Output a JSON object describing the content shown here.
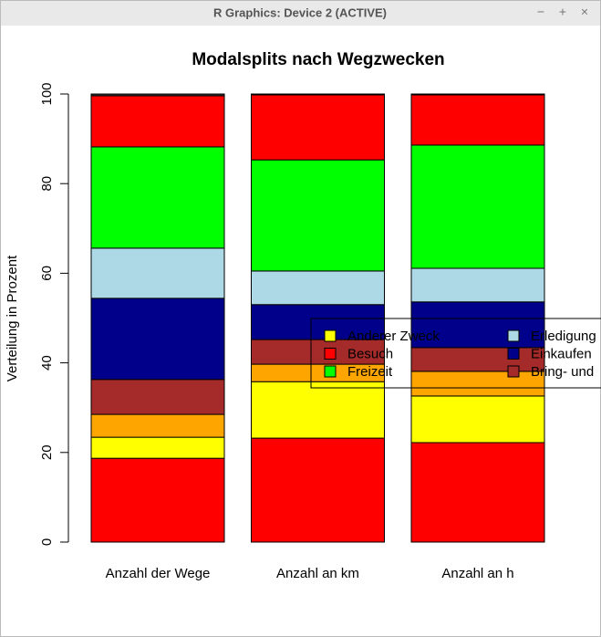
{
  "window_title": "R Graphics: Device 2 (ACTIVE)",
  "chart_data": {
    "type": "stacked-bar",
    "title": "Modalsplits nach Wegzwecken",
    "y_label": "Verteilung in Prozent",
    "categories": [
      "Anzahl der Wege",
      "Anzahl an km",
      "Anzahl an h"
    ],
    "ylim": [
      0,
      100
    ],
    "yticks": [
      0,
      20,
      40,
      60,
      80,
      100
    ],
    "series": [
      {
        "color": "#ff0000",
        "values": [
          18.7,
          23.2,
          22.2
        ]
      },
      {
        "color": "#ffff00",
        "values": [
          4.7,
          12.6,
          10.4
        ]
      },
      {
        "color": "#ffa500",
        "values": [
          5.1,
          3.9,
          5.5
        ]
      },
      {
        "color": "#a52a2a",
        "values": [
          7.8,
          5.5,
          5.3
        ]
      },
      {
        "color": "#00008b",
        "values": [
          18.1,
          7.8,
          10.2
        ]
      },
      {
        "color": "#add8e6",
        "values": [
          11.2,
          7.5,
          7.5
        ]
      },
      {
        "color": "#00ff00",
        "values": [
          22.6,
          24.8,
          27.5
        ]
      },
      {
        "color": "#ff0000",
        "values": [
          11.4,
          14.5,
          11.2
        ]
      },
      {
        "color": "#333333",
        "values": [
          0.4,
          0.2,
          0.2
        ]
      }
    ],
    "legend": [
      {
        "name": "Anderer Zweck",
        "color": "#ffff00"
      },
      {
        "name": "Besuch",
        "color": "#ff0000"
      },
      {
        "name": "Freizeit",
        "color": "#00ff00"
      },
      {
        "name": "Erledigung",
        "color": "#add8e6"
      },
      {
        "name": "Einkaufen",
        "color": "#00008b"
      },
      {
        "name": "Bring- und",
        "color": "#a52a2a"
      }
    ]
  }
}
